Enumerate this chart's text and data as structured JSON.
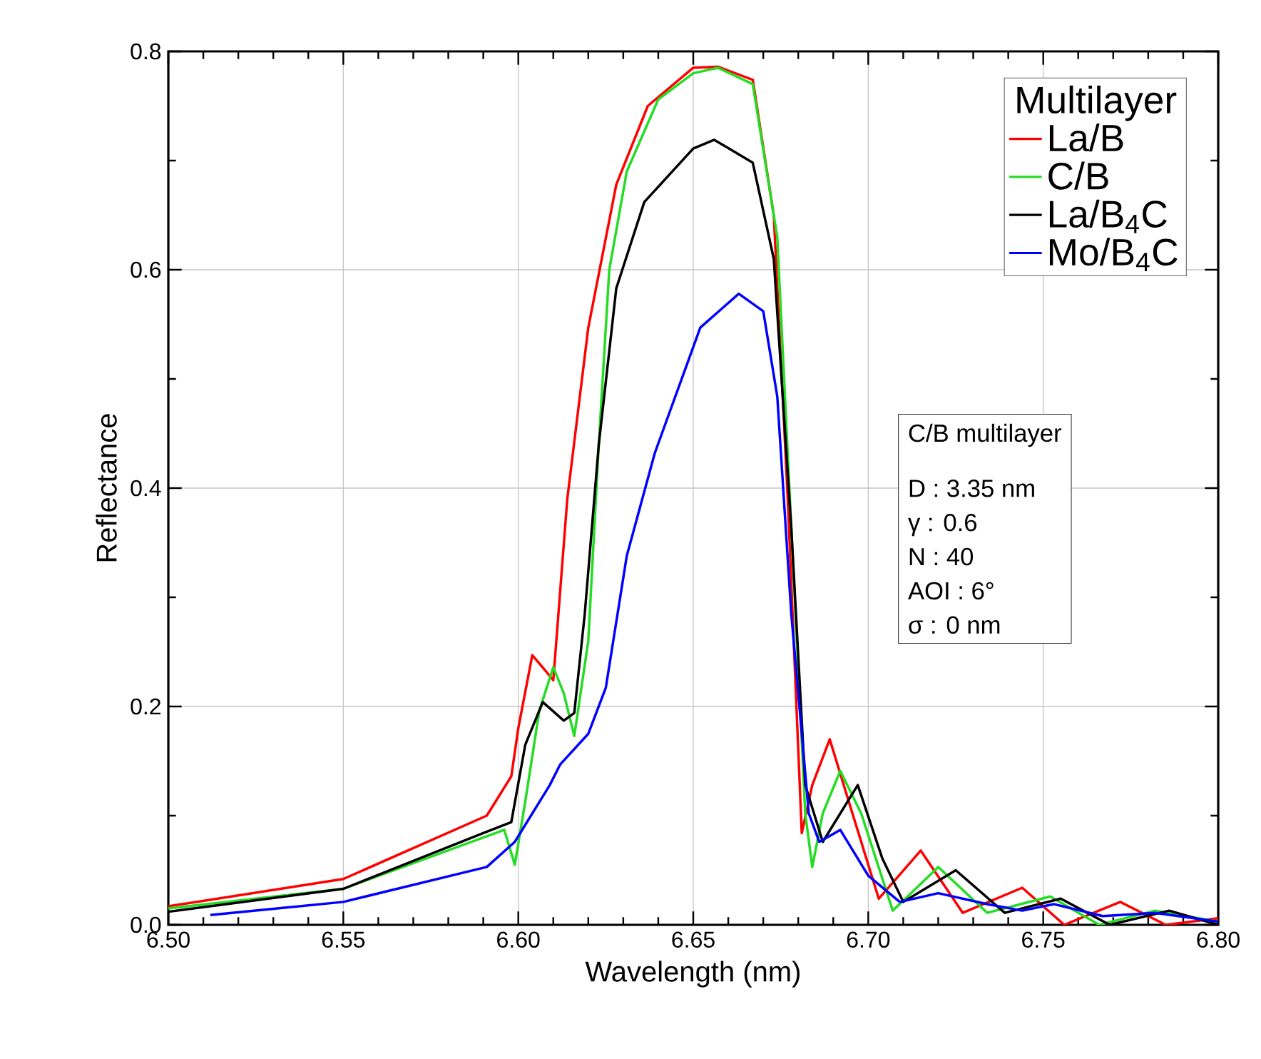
{
  "chart_data": {
    "type": "line",
    "xlabel": "Wavelength (nm)",
    "ylabel": "Reflectance",
    "legend_title": "Multilayer",
    "legend": "top right",
    "grid": true,
    "xlim": [
      6.5,
      6.8
    ],
    "ylim": [
      0,
      0.8
    ],
    "xticks": [
      {
        "value": 6.5,
        "label": "6.50"
      },
      {
        "value": 6.55,
        "label": "6.55"
      },
      {
        "value": 6.6,
        "label": "6.60"
      },
      {
        "value": 6.65,
        "label": "6.65"
      },
      {
        "value": 6.7,
        "label": "6.70"
      },
      {
        "value": 6.75,
        "label": "6.75"
      },
      {
        "value": 6.8,
        "label": "6.80"
      }
    ],
    "yticks": [
      {
        "value": 0,
        "label": "0.0"
      },
      0.2,
      0.4,
      0.6,
      0.8
    ],
    "annotations": [
      "C/B multilayer",
      "D : 3.35 nm",
      "γ : 0.6",
      "N : 40",
      "AOI : 6°",
      "σ : 0 nm"
    ],
    "series": [
      {
        "name": "La/B",
        "color": "#ff0000",
        "x": [
          6.5,
          6.55,
          6.591,
          6.598,
          6.6,
          6.604,
          6.609,
          6.61,
          6.614,
          6.62,
          6.628,
          6.637,
          6.65,
          6.657,
          6.667,
          6.673,
          6.677,
          6.681,
          6.684,
          6.689,
          6.695,
          6.703,
          6.715,
          6.727,
          6.744,
          6.756,
          6.772,
          6.785,
          6.8
        ],
        "values": [
          0.017,
          0.042,
          0.1,
          0.136,
          0.18,
          0.247,
          0.228,
          0.224,
          0.39,
          0.547,
          0.678,
          0.75,
          0.785,
          0.786,
          0.774,
          0.65,
          0.39,
          0.084,
          0.128,
          0.17,
          0.107,
          0.024,
          0.068,
          0.011,
          0.034,
          0.0,
          0.021,
          0.0,
          0.006
        ]
      },
      {
        "name": "C/B",
        "color": "#22dd22",
        "x": [
          6.5,
          6.55,
          6.596,
          6.599,
          6.602,
          6.606,
          6.61,
          6.613,
          6.616,
          6.62,
          6.623,
          6.626,
          6.631,
          6.64,
          6.65,
          6.657,
          6.667,
          6.674,
          6.678,
          6.682,
          6.684,
          6.687,
          6.692,
          6.698,
          6.707,
          6.72,
          6.734,
          6.752,
          6.766,
          6.782,
          6.8
        ],
        "values": [
          0.015,
          0.033,
          0.087,
          0.055,
          0.113,
          0.196,
          0.236,
          0.212,
          0.173,
          0.26,
          0.44,
          0.6,
          0.69,
          0.756,
          0.78,
          0.785,
          0.77,
          0.63,
          0.364,
          0.102,
          0.053,
          0.102,
          0.141,
          0.102,
          0.013,
          0.053,
          0.011,
          0.026,
          0.0,
          0.013,
          0.003
        ]
      },
      {
        "name": "La/B$_{4}$C",
        "color": "#000000",
        "x": [
          6.5,
          6.55,
          6.59,
          6.598,
          6.602,
          6.607,
          6.613,
          6.616,
          6.619,
          6.623,
          6.628,
          6.636,
          6.65,
          6.656,
          6.667,
          6.673,
          6.678,
          6.682,
          6.687,
          6.697,
          6.704,
          6.71,
          6.725,
          6.739,
          6.755,
          6.769,
          6.786,
          6.8
        ],
        "values": [
          0.012,
          0.033,
          0.084,
          0.094,
          0.165,
          0.204,
          0.187,
          0.194,
          0.285,
          0.44,
          0.583,
          0.662,
          0.711,
          0.719,
          0.698,
          0.61,
          0.364,
          0.128,
          0.076,
          0.128,
          0.061,
          0.021,
          0.05,
          0.011,
          0.024,
          0.0,
          0.013,
          0.0
        ]
      },
      {
        "name": "Mo/B$_{4}$C",
        "color": "#0000ff",
        "x": [
          6.512,
          6.55,
          6.591,
          6.599,
          6.609,
          6.612,
          6.62,
          6.625,
          6.631,
          6.639,
          6.652,
          6.663,
          6.67,
          6.674,
          6.678,
          6.683,
          6.686,
          6.692,
          6.7,
          6.709,
          6.72,
          6.734,
          6.744,
          6.753,
          6.767,
          6.782,
          6.8
        ],
        "values": [
          0.009,
          0.021,
          0.053,
          0.076,
          0.128,
          0.147,
          0.175,
          0.217,
          0.338,
          0.432,
          0.547,
          0.578,
          0.562,
          0.484,
          0.285,
          0.102,
          0.076,
          0.087,
          0.045,
          0.021,
          0.029,
          0.019,
          0.013,
          0.019,
          0.008,
          0.011,
          0.003
        ]
      }
    ]
  }
}
